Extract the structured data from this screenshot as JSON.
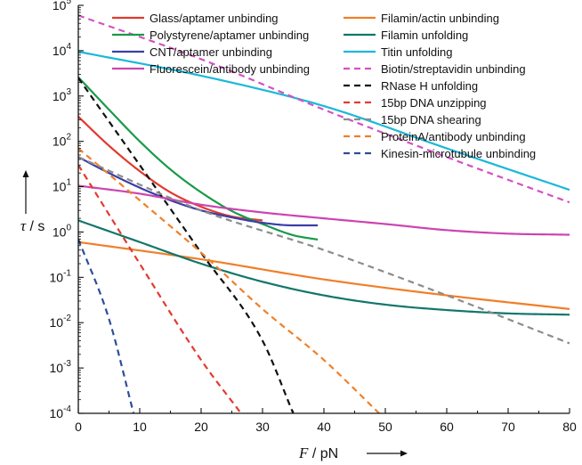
{
  "chart_data": {
    "type": "line",
    "x_axis": {
      "symbol": "F",
      "unit": "/ pN",
      "min": 0,
      "max": 80,
      "ticks": [
        "0",
        "10",
        "20",
        "30",
        "40",
        "50",
        "60",
        "70",
        "80"
      ]
    },
    "y_axis": {
      "symbol": "τ",
      "unit": "/ s",
      "scale": "log",
      "min_exp": -4,
      "max_exp": 5,
      "ticks": [
        {
          "exp": -4,
          "base": "10",
          "sup": "-4"
        },
        {
          "exp": -3,
          "base": "10",
          "sup": "-3"
        },
        {
          "exp": -2,
          "base": "10",
          "sup": "-2"
        },
        {
          "exp": -1,
          "base": "10",
          "sup": "-1"
        },
        {
          "exp": 0,
          "base": "10",
          "sup": "0"
        },
        {
          "exp": 1,
          "base": "10",
          "sup": "1"
        },
        {
          "exp": 2,
          "base": "10",
          "sup": "2"
        },
        {
          "exp": 3,
          "base": "10",
          "sup": "3"
        },
        {
          "exp": 4,
          "base": "10",
          "sup": "4"
        },
        {
          "exp": 5,
          "base": "10",
          "sup": "5"
        }
      ]
    },
    "legend_placement": "top",
    "grid": false,
    "series": [
      {
        "name": "Glass/aptamer unbinding",
        "color": "#e03a2f",
        "dash": "solid",
        "points": [
          [
            0,
            350
          ],
          [
            5,
            80
          ],
          [
            10,
            22
          ],
          [
            15,
            7.5
          ],
          [
            20,
            3.6
          ],
          [
            25,
            2.2
          ],
          [
            30,
            1.8
          ]
        ]
      },
      {
        "name": "Polystyrene/aptamer unbinding",
        "color": "#1a9a4a",
        "dash": "solid",
        "points": [
          [
            0,
            2600
          ],
          [
            5,
            500
          ],
          [
            10,
            100
          ],
          [
            15,
            24
          ],
          [
            20,
            7.5
          ],
          [
            25,
            2.9
          ],
          [
            30,
            1.5
          ],
          [
            35,
            0.85
          ],
          [
            39,
            0.68
          ]
        ]
      },
      {
        "name": "CNT/aptamer unbinding",
        "color": "#3b3fa6",
        "dash": "solid",
        "points": [
          [
            0,
            45
          ],
          [
            5,
            20
          ],
          [
            10,
            9.5
          ],
          [
            15,
            5.0
          ],
          [
            20,
            3.0
          ],
          [
            25,
            2.1
          ],
          [
            30,
            1.6
          ],
          [
            35,
            1.4
          ],
          [
            39,
            1.4
          ]
        ]
      },
      {
        "name": "Fluorescein/antibody unbinding",
        "color": "#cc44b0",
        "dash": "solid",
        "points": [
          [
            0,
            10.5
          ],
          [
            10,
            7
          ],
          [
            20,
            4
          ],
          [
            30,
            2.7
          ],
          [
            40,
            2.0
          ],
          [
            50,
            1.5
          ],
          [
            60,
            1.1
          ],
          [
            70,
            0.92
          ],
          [
            80,
            0.87
          ]
        ]
      },
      {
        "name": "Filamin/actin unbinding",
        "color": "#f07f2a",
        "dash": "solid",
        "points": [
          [
            0,
            0.6
          ],
          [
            20,
            0.25
          ],
          [
            40,
            0.09
          ],
          [
            60,
            0.04
          ],
          [
            80,
            0.02
          ]
        ]
      },
      {
        "name": "Filamin unfolding",
        "color": "#12766b",
        "dash": "solid",
        "points": [
          [
            0,
            1.8
          ],
          [
            10,
            0.6
          ],
          [
            20,
            0.2
          ],
          [
            30,
            0.08
          ],
          [
            40,
            0.04
          ],
          [
            50,
            0.025
          ],
          [
            60,
            0.019
          ],
          [
            70,
            0.016
          ],
          [
            80,
            0.015
          ]
        ]
      },
      {
        "name": "Titin unfolding",
        "color": "#1bb8d8",
        "dash": "solid",
        "points": [
          [
            0,
            9500
          ],
          [
            20,
            2800
          ],
          [
            40,
            600
          ],
          [
            60,
            70
          ],
          [
            80,
            8.5
          ]
        ]
      },
      {
        "name": "Biotin/streptavidin unbinding",
        "color": "#d552c2",
        "dash": "dashed",
        "points": [
          [
            0,
            60000
          ],
          [
            20,
            6500
          ],
          [
            40,
            500
          ],
          [
            60,
            45
          ],
          [
            80,
            4.5
          ]
        ]
      },
      {
        "name": "RNase H unfolding",
        "color": "#111111",
        "dash": "dashed",
        "points": [
          [
            0,
            2500
          ],
          [
            10,
            30
          ],
          [
            20,
            0.35
          ],
          [
            30,
            0.004
          ],
          [
            35,
            0.0001
          ]
        ]
      },
      {
        "name": "15bp DNA unzipping",
        "color": "#e23a2f",
        "dash": "dashed",
        "points": [
          [
            0,
            30
          ],
          [
            10,
            0.2
          ],
          [
            20,
            0.0015
          ],
          [
            26.5,
            0.0001
          ]
        ]
      },
      {
        "name": "15bp DNA shearing",
        "color": "#8c8c8c",
        "dash": "dashed",
        "points": [
          [
            0,
            45
          ],
          [
            20,
            3
          ],
          [
            40,
            0.4
          ],
          [
            60,
            0.04
          ],
          [
            80,
            0.0035
          ]
        ]
      },
      {
        "name": "ProteinA/antibody unbinding",
        "color": "#f07f2a",
        "dash": "dashed",
        "points": [
          [
            0,
            70
          ],
          [
            10,
            5
          ],
          [
            20,
            0.35
          ],
          [
            30,
            0.02
          ],
          [
            40,
            0.0015
          ],
          [
            49,
            0.0001
          ]
        ]
      },
      {
        "name": "Kinesin-microtubule unbinding",
        "color": "#2d4e9a",
        "dash": "dashed",
        "points": [
          [
            0,
            0.7
          ],
          [
            5,
            0.012
          ],
          [
            9,
            0.0001
          ]
        ]
      }
    ]
  }
}
